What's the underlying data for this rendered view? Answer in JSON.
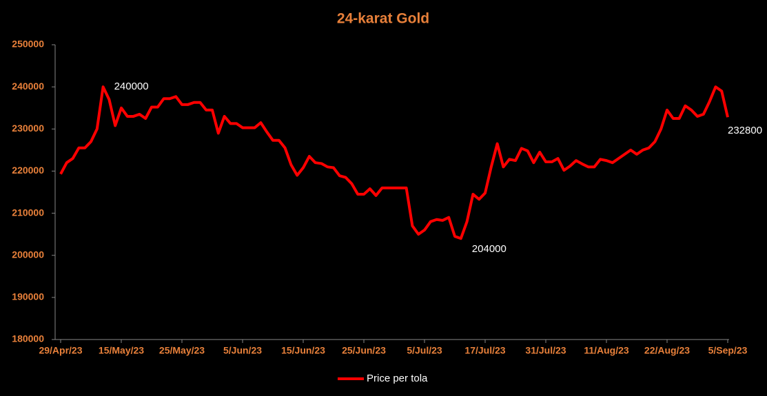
{
  "chart_data": {
    "type": "line",
    "title": "24-karat Gold",
    "categories": [
      "29/Apr/23",
      null,
      null,
      null,
      null,
      null,
      null,
      null,
      null,
      null,
      "15/May/23",
      null,
      null,
      null,
      null,
      null,
      null,
      null,
      null,
      null,
      "25/May/23",
      null,
      null,
      null,
      null,
      null,
      null,
      null,
      null,
      null,
      "5/Jun/23",
      null,
      null,
      null,
      null,
      null,
      null,
      null,
      null,
      null,
      "15/Jun/23",
      null,
      null,
      null,
      null,
      null,
      null,
      null,
      null,
      null,
      "25/Jun/23",
      null,
      null,
      null,
      null,
      null,
      null,
      null,
      null,
      null,
      "5/Jul/23",
      null,
      null,
      null,
      null,
      null,
      null,
      null,
      null,
      null,
      "17/Jul/23",
      null,
      null,
      null,
      null,
      null,
      null,
      null,
      null,
      null,
      "31/Jul/23",
      null,
      null,
      null,
      null,
      null,
      null,
      null,
      null,
      null,
      "11/Aug/23",
      null,
      null,
      null,
      null,
      null,
      null,
      null,
      null,
      null,
      "22/Aug/23",
      null,
      null,
      null,
      null,
      null,
      null,
      null,
      null,
      null,
      "5/Sep/23"
    ],
    "series": [
      {
        "name": "Price per tola",
        "color": "#ff0000",
        "values": [
          219300,
          222000,
          223000,
          225500,
          225500,
          227000,
          230000,
          240000,
          237000,
          230800,
          235000,
          233000,
          233000,
          233500,
          232500,
          235200,
          235200,
          237200,
          237200,
          237700,
          235800,
          235800,
          236300,
          236300,
          234500,
          234500,
          229000,
          233000,
          231300,
          231300,
          230300,
          230300,
          230300,
          231500,
          229300,
          227300,
          227300,
          225500,
          221500,
          219000,
          220800,
          223500,
          222000,
          221800,
          221000,
          220800,
          218900,
          218500,
          217000,
          214500,
          214500,
          215800,
          214200,
          216000,
          216000,
          216000,
          216000,
          216000,
          207000,
          205000,
          206000,
          208000,
          208500,
          208300,
          209000,
          204500,
          204000,
          208000,
          214500,
          213300,
          214800,
          221000,
          226500,
          221000,
          222800,
          222500,
          225400,
          224800,
          222000,
          224500,
          222200,
          222200,
          223000,
          220200,
          221200,
          222500,
          221700,
          221000,
          221000,
          222800,
          222500,
          222000,
          223000,
          224000,
          225000,
          224000,
          225000,
          225500,
          227000,
          230000,
          234500,
          232500,
          232500,
          235500,
          234500,
          233000,
          233500,
          236500,
          240000,
          239000,
          232800
        ]
      }
    ],
    "ylim": [
      180000,
      250000
    ],
    "yticks": [
      180000,
      190000,
      200000,
      210000,
      220000,
      230000,
      240000,
      250000
    ],
    "legend": "bottom"
  }
}
